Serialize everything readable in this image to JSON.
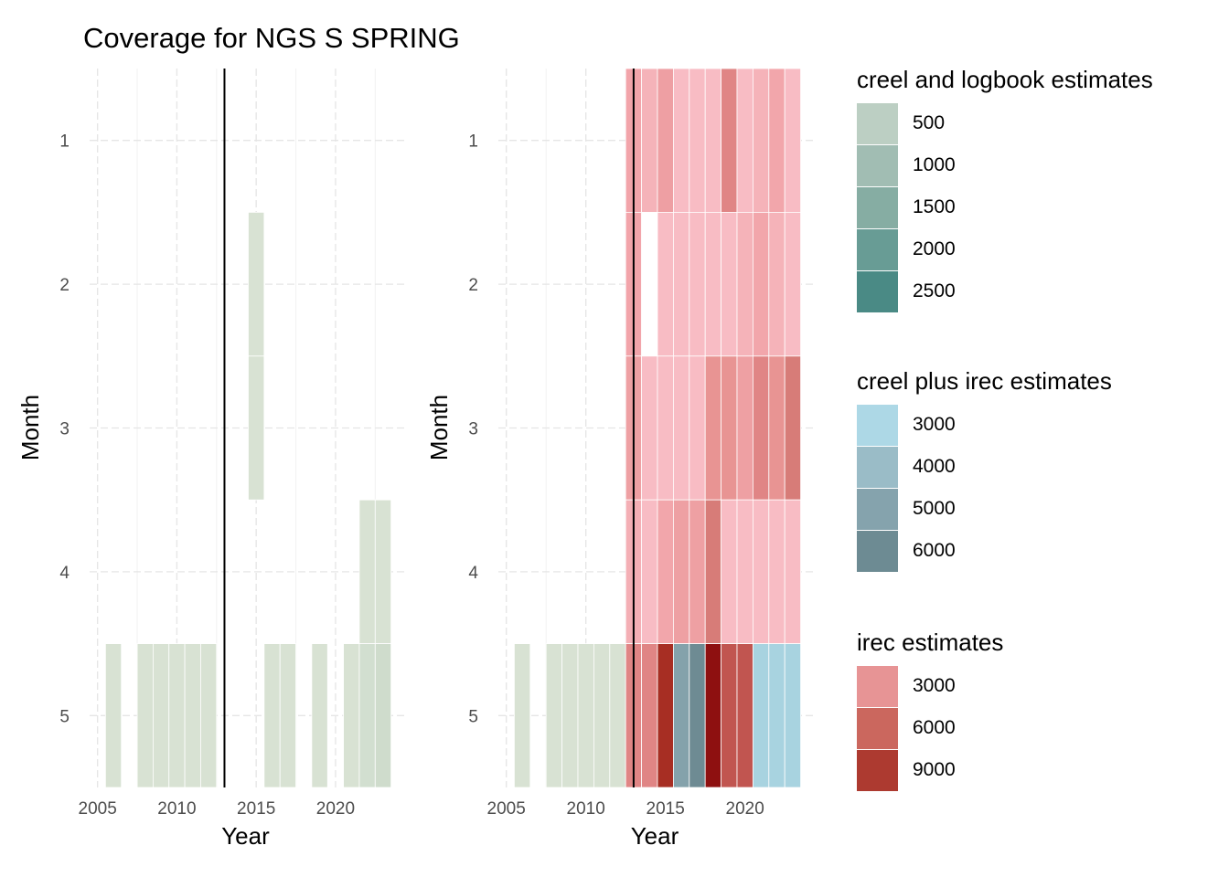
{
  "title": "Coverage for NGS S SPRING",
  "chart_data": [
    {
      "type": "heatmap",
      "panel": "left",
      "xlabel": "Year",
      "ylabel": "Month",
      "xticks": [
        2005,
        2010,
        2015,
        2020
      ],
      "yticks": [
        1,
        2,
        3,
        4,
        5
      ],
      "xlim": [
        2004.5,
        2024.5
      ],
      "ylim": [
        0.5,
        5.5
      ],
      "grid": true,
      "vline_x": 2013,
      "tiles": [
        {
          "year": 2006,
          "month": 5,
          "fill": "#d8e2d3"
        },
        {
          "year": 2008,
          "month": 5,
          "fill": "#d8e2d3"
        },
        {
          "year": 2009,
          "month": 5,
          "fill": "#d8e2d3"
        },
        {
          "year": 2010,
          "month": 5,
          "fill": "#d8e2d3"
        },
        {
          "year": 2011,
          "month": 5,
          "fill": "#d8e2d3"
        },
        {
          "year": 2012,
          "month": 5,
          "fill": "#d8e2d3"
        },
        {
          "year": 2015,
          "month": 2,
          "fill": "#d8e2d3"
        },
        {
          "year": 2015,
          "month": 3,
          "fill": "#d8e2d3"
        },
        {
          "year": 2016,
          "month": 5,
          "fill": "#d8e2d3"
        },
        {
          "year": 2017,
          "month": 5,
          "fill": "#d8e2d3"
        },
        {
          "year": 2019,
          "month": 5,
          "fill": "#d8e2d3"
        },
        {
          "year": 2021,
          "month": 5,
          "fill": "#d8e2d3"
        },
        {
          "year": 2022,
          "month": 4,
          "fill": "#d8e2d3"
        },
        {
          "year": 2022,
          "month": 5,
          "fill": "#d2dfd0"
        },
        {
          "year": 2023,
          "month": 4,
          "fill": "#d8e2d3"
        },
        {
          "year": 2023,
          "month": 5,
          "fill": "#cfdccc"
        }
      ]
    },
    {
      "type": "heatmap",
      "panel": "right",
      "xlabel": "Year",
      "ylabel": "Month",
      "xticks": [
        2005,
        2010,
        2015,
        2020
      ],
      "yticks": [
        1,
        2,
        3,
        4,
        5
      ],
      "xlim": [
        2004.5,
        2024.5
      ],
      "ylim": [
        0.5,
        5.5
      ],
      "grid": true,
      "vline_x": 2013,
      "tiles": [
        {
          "year": 2006,
          "month": 5,
          "fill": "#d8e2d3"
        },
        {
          "year": 2008,
          "month": 5,
          "fill": "#d8e2d3"
        },
        {
          "year": 2009,
          "month": 5,
          "fill": "#d8e2d3"
        },
        {
          "year": 2010,
          "month": 5,
          "fill": "#d8e2d3"
        },
        {
          "year": 2011,
          "month": 5,
          "fill": "#d8e2d3"
        },
        {
          "year": 2012,
          "month": 5,
          "fill": "#d8e2d3"
        },
        {
          "year": 2013,
          "month": 1,
          "fill": "#f2a4aa"
        },
        {
          "year": 2013,
          "month": 2,
          "fill": "#f2a4aa"
        },
        {
          "year": 2013,
          "month": 3,
          "fill": "#eea0a3"
        },
        {
          "year": 2013,
          "month": 4,
          "fill": "#f4afb5"
        },
        {
          "year": 2013,
          "month": 5,
          "fill": "#e08585"
        },
        {
          "year": 2014,
          "month": 1,
          "fill": "#f5b3b9"
        },
        {
          "year": 2014,
          "month": 2,
          "fill": "#ffffff"
        },
        {
          "year": 2014,
          "month": 3,
          "fill": "#f8bcc4"
        },
        {
          "year": 2014,
          "month": 4,
          "fill": "#f8bcc4"
        },
        {
          "year": 2014,
          "month": 5,
          "fill": "#e08585"
        },
        {
          "year": 2015,
          "month": 1,
          "fill": "#ee9fa3"
        },
        {
          "year": 2015,
          "month": 2,
          "fill": "#f8bcc4"
        },
        {
          "year": 2015,
          "month": 3,
          "fill": "#f8bcc4"
        },
        {
          "year": 2015,
          "month": 4,
          "fill": "#f2a6ab"
        },
        {
          "year": 2015,
          "month": 5,
          "fill": "#a72e23"
        },
        {
          "year": 2016,
          "month": 1,
          "fill": "#f8bcc4"
        },
        {
          "year": 2016,
          "month": 2,
          "fill": "#f8bcc4"
        },
        {
          "year": 2016,
          "month": 3,
          "fill": "#f8bcc4"
        },
        {
          "year": 2016,
          "month": 4,
          "fill": "#eea0a3"
        },
        {
          "year": 2016,
          "month": 5,
          "fill": "#84a2ab"
        },
        {
          "year": 2017,
          "month": 1,
          "fill": "#f8bcc4"
        },
        {
          "year": 2017,
          "month": 2,
          "fill": "#f8bcc4"
        },
        {
          "year": 2017,
          "month": 3,
          "fill": "#f8bcc4"
        },
        {
          "year": 2017,
          "month": 4,
          "fill": "#eea0a3"
        },
        {
          "year": 2017,
          "month": 5,
          "fill": "#6e8b93"
        },
        {
          "year": 2018,
          "month": 1,
          "fill": "#f8bcc4"
        },
        {
          "year": 2018,
          "month": 2,
          "fill": "#f8bcc4"
        },
        {
          "year": 2018,
          "month": 3,
          "fill": "#e89493"
        },
        {
          "year": 2018,
          "month": 4,
          "fill": "#d77c78"
        },
        {
          "year": 2018,
          "month": 5,
          "fill": "#8e1010"
        },
        {
          "year": 2019,
          "month": 1,
          "fill": "#e08585"
        },
        {
          "year": 2019,
          "month": 2,
          "fill": "#f8bcc4"
        },
        {
          "year": 2019,
          "month": 3,
          "fill": "#e89493"
        },
        {
          "year": 2019,
          "month": 4,
          "fill": "#f8bcc4"
        },
        {
          "year": 2019,
          "month": 5,
          "fill": "#c15550"
        },
        {
          "year": 2020,
          "month": 1,
          "fill": "#f8bcc4"
        },
        {
          "year": 2020,
          "month": 2,
          "fill": "#f5b3b9"
        },
        {
          "year": 2020,
          "month": 3,
          "fill": "#eea0a3"
        },
        {
          "year": 2020,
          "month": 4,
          "fill": "#f8bcc4"
        },
        {
          "year": 2020,
          "month": 5,
          "fill": "#c15550"
        },
        {
          "year": 2021,
          "month": 1,
          "fill": "#f5b3b9"
        },
        {
          "year": 2021,
          "month": 2,
          "fill": "#f2a6ab"
        },
        {
          "year": 2021,
          "month": 3,
          "fill": "#e08585"
        },
        {
          "year": 2021,
          "month": 4,
          "fill": "#f8bcc4"
        },
        {
          "year": 2021,
          "month": 5,
          "fill": "#a8d3e0"
        },
        {
          "year": 2022,
          "month": 1,
          "fill": "#f2a6ab"
        },
        {
          "year": 2022,
          "month": 2,
          "fill": "#f5b3b9"
        },
        {
          "year": 2022,
          "month": 3,
          "fill": "#e89493"
        },
        {
          "year": 2022,
          "month": 4,
          "fill": "#f8bcc4"
        },
        {
          "year": 2022,
          "month": 5,
          "fill": "#a8d3e0"
        },
        {
          "year": 2023,
          "month": 1,
          "fill": "#f8bcc4"
        },
        {
          "year": 2023,
          "month": 2,
          "fill": "#f8bcc4"
        },
        {
          "year": 2023,
          "month": 3,
          "fill": "#d77c78"
        },
        {
          "year": 2023,
          "month": 4,
          "fill": "#f8bcc4"
        },
        {
          "year": 2023,
          "month": 5,
          "fill": "#a8d3e0"
        }
      ]
    }
  ],
  "legends": [
    {
      "title": "creel and logbook estimates",
      "items": [
        {
          "label": "500",
          "color": "#bccfc3"
        },
        {
          "label": "1000",
          "color": "#a1bdb3"
        },
        {
          "label": "1500",
          "color": "#86ada3"
        },
        {
          "label": "2000",
          "color": "#689c95"
        },
        {
          "label": "2500",
          "color": "#4a8a85"
        }
      ]
    },
    {
      "title": "creel plus irec estimates",
      "items": [
        {
          "label": "3000",
          "color": "#add8e6"
        },
        {
          "label": "4000",
          "color": "#9abcc7"
        },
        {
          "label": "5000",
          "color": "#85a3ad"
        },
        {
          "label": "6000",
          "color": "#6d8b93"
        }
      ]
    },
    {
      "title": "irec estimates",
      "items": [
        {
          "label": "3000",
          "color": "#e79495"
        },
        {
          "label": "6000",
          "color": "#cb675e"
        },
        {
          "label": "9000",
          "color": "#ad3a30"
        }
      ]
    }
  ]
}
